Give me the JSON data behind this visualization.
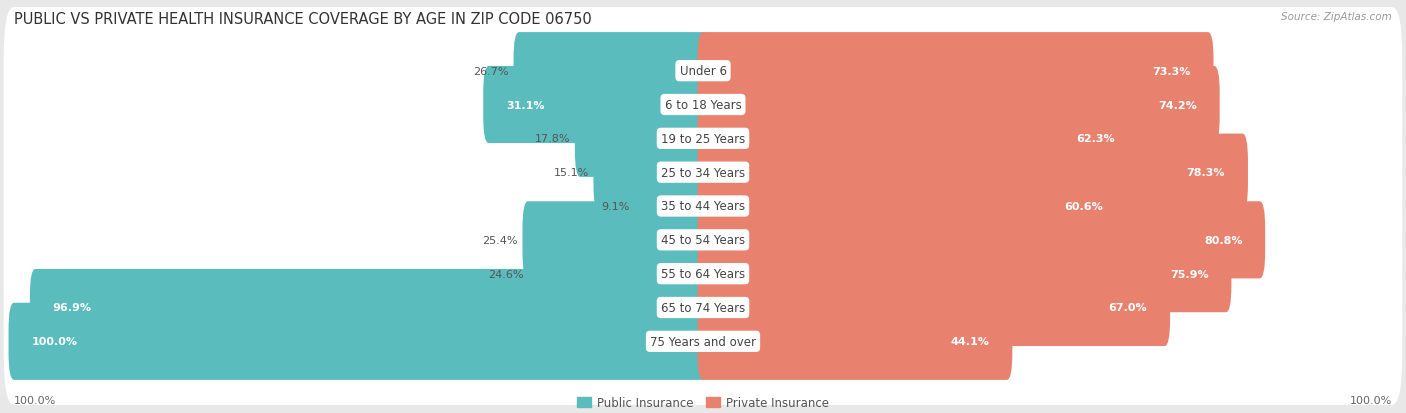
{
  "title": "PUBLIC VS PRIVATE HEALTH INSURANCE COVERAGE BY AGE IN ZIP CODE 06750",
  "source": "Source: ZipAtlas.com",
  "categories": [
    "Under 6",
    "6 to 18 Years",
    "19 to 25 Years",
    "25 to 34 Years",
    "35 to 44 Years",
    "45 to 54 Years",
    "55 to 64 Years",
    "65 to 74 Years",
    "75 Years and over"
  ],
  "public_values": [
    26.7,
    31.1,
    17.8,
    15.1,
    9.1,
    25.4,
    24.6,
    96.9,
    100.0
  ],
  "private_values": [
    73.3,
    74.2,
    62.3,
    78.3,
    60.6,
    80.8,
    75.9,
    67.0,
    44.1
  ],
  "public_color": "#5bbcbd",
  "private_color": "#e8826e",
  "private_light_color": "#f0a898",
  "bg_color": "#e8e8e8",
  "row_bg_color": "#ffffff",
  "bar_height": 0.68,
  "title_fontsize": 10.5,
  "label_fontsize": 8.0,
  "tick_fontsize": 8.0,
  "legend_fontsize": 8.5,
  "category_fontsize": 8.5,
  "max_val": 100,
  "x_axis_label_left": "100.0%",
  "x_axis_label_right": "100.0%",
  "row_padding": 0.12
}
